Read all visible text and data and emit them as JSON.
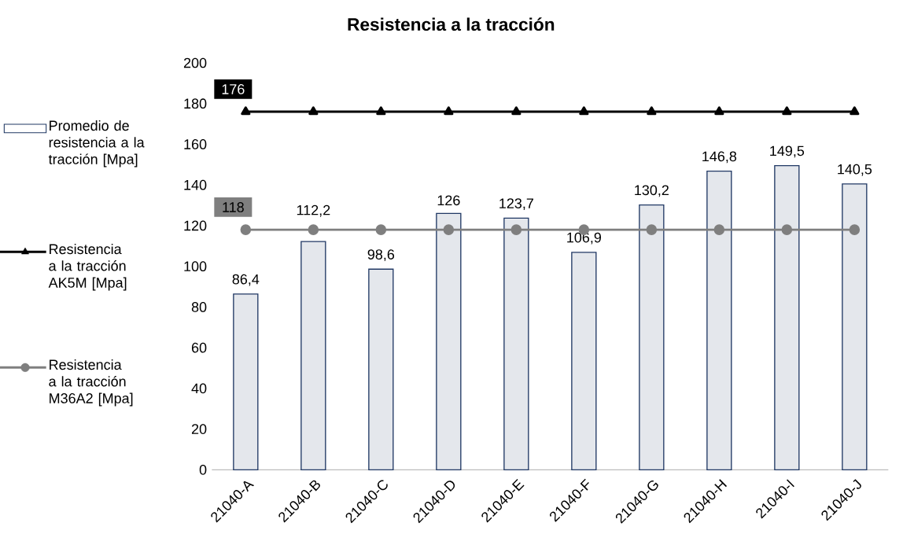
{
  "chart_data": {
    "type": "bar",
    "title": "Resistencia a la tracción",
    "categories": [
      "21040-A",
      "21040-B",
      "21040-C",
      "21040-D",
      "21040-E",
      "21040-F",
      "21040-G",
      "21040-H",
      "21040-I",
      "21040-J"
    ],
    "series": [
      {
        "name": "Promedio de resistencia a la tracción [Mpa]",
        "color": "#203864",
        "values": [
          86.4,
          112.2,
          98.6,
          126,
          123.7,
          106.9,
          130.2,
          146.8,
          149.5,
          140.5
        ],
        "value_labels": [
          "86,4",
          "112,2",
          "98,6",
          "126",
          "123,7",
          "106,9",
          "130,2",
          "146,8",
          "149,5",
          "140,5"
        ]
      },
      {
        "name": "Resistencia a la tracción AK5M [Mpa]",
        "type": "line",
        "color": "#000000",
        "marker": "triangle",
        "values": [
          176,
          176,
          176,
          176,
          176,
          176,
          176,
          176,
          176,
          176
        ],
        "value_labels": [
          "176",
          null,
          null,
          null,
          null,
          null,
          null,
          null,
          null,
          null
        ]
      },
      {
        "name": "Resistencia a la tracción M36A2 [Mpa]",
        "type": "line",
        "color": "#7f7f7f",
        "marker": "circle",
        "values": [
          118,
          118,
          118,
          118,
          118,
          118,
          118,
          118,
          118,
          118
        ],
        "value_labels": [
          "118",
          null,
          null,
          null,
          null,
          null,
          null,
          null,
          null,
          null
        ]
      }
    ],
    "ylim": [
      0,
      200
    ],
    "yticks": [
      0,
      20,
      40,
      60,
      80,
      100,
      120,
      140,
      160,
      180,
      200
    ],
    "legend": "left"
  }
}
